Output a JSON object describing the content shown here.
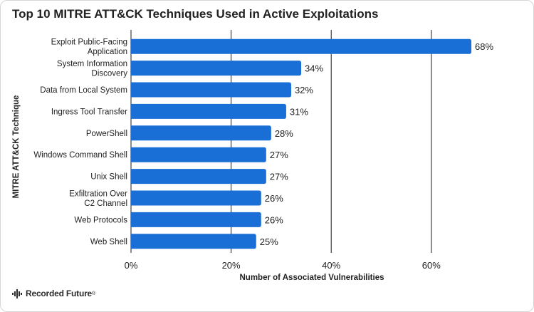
{
  "brand": {
    "name": "Recorded Future",
    "mark": "®"
  },
  "chart_data": {
    "type": "bar",
    "orientation": "horizontal",
    "title": "Top 10 MITRE ATT&CK Techniques Used in Active Exploitations",
    "xlabel": "Number of Associated Vulnerabilities",
    "ylabel": "MITRE ATT&CK Technique",
    "categories": [
      "Exploit Public-Facing Application",
      "System Information Discovery",
      "Data from Local System",
      "Ingress Tool Transfer",
      "PowerShell",
      "Windows Command Shell",
      "Unix Shell",
      "Exfiltration Over C2 Channel",
      "Web Protocols",
      "Web Shell"
    ],
    "category_lines": [
      [
        "Exploit Public-Facing",
        "Application"
      ],
      [
        "System Information",
        "Discovery"
      ],
      [
        "Data from Local System"
      ],
      [
        "Ingress Tool Transfer"
      ],
      [
        "PowerShell"
      ],
      [
        "Windows Command Shell"
      ],
      [
        "Unix Shell"
      ],
      [
        "Exfiltration Over",
        "C2 Channel"
      ],
      [
        "Web Protocols"
      ],
      [
        "Web Shell"
      ]
    ],
    "values": [
      68,
      34,
      32,
      31,
      28,
      27,
      27,
      26,
      26,
      25
    ],
    "value_labels": [
      "68%",
      "34%",
      "32%",
      "31%",
      "28%",
      "27%",
      "27%",
      "26%",
      "26%",
      "25%"
    ],
    "xlim": [
      0,
      75
    ],
    "xticks": [
      0,
      20,
      40,
      60
    ],
    "xtick_labels": [
      "0%",
      "20%",
      "40%",
      "60%"
    ],
    "grid": "vertical",
    "bar_color": "#1a6fd6",
    "grid_color": "#1a1a1a"
  }
}
